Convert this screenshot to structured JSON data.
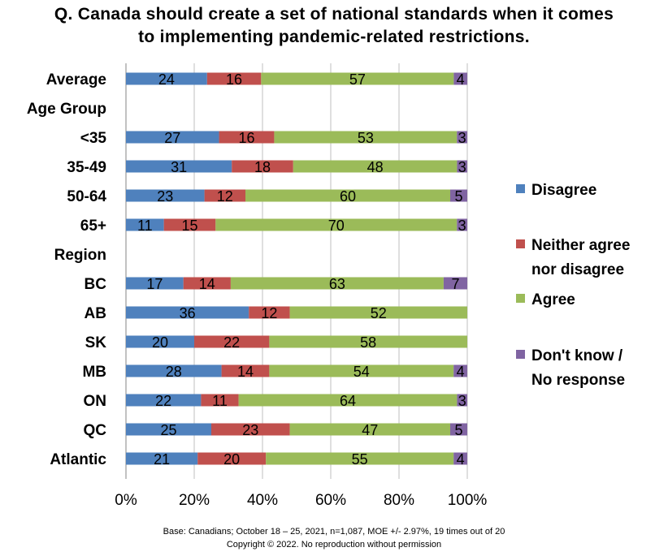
{
  "chart_data": {
    "type": "bar",
    "orientation": "horizontal",
    "stacked": "percent",
    "title": [
      "Q. Canada should create a set of national standards when it comes",
      "to implementing pandemic-related restrictions."
    ],
    "categories": [
      "Average",
      "Age Group",
      "<35",
      "35-49",
      "50-64",
      "65+",
      "Region",
      "BC",
      "AB",
      "SK",
      "MB",
      "ON",
      "QC",
      "Atlantic"
    ],
    "series": [
      {
        "name": "Disagree",
        "color": "#4F81BD",
        "values": [
          24,
          null,
          27,
          31,
          23,
          11,
          null,
          17,
          36,
          20,
          28,
          22,
          25,
          21
        ]
      },
      {
        "name": "Neither agree nor disagree",
        "color": "#C0504D",
        "values": [
          16,
          null,
          16,
          18,
          12,
          15,
          null,
          14,
          12,
          22,
          14,
          11,
          23,
          20
        ]
      },
      {
        "name": "Agree",
        "color": "#9BBB59",
        "values": [
          57,
          null,
          53,
          48,
          60,
          70,
          null,
          63,
          52,
          58,
          54,
          64,
          47,
          55
        ]
      },
      {
        "name": "Don't know / No response",
        "color": "#8064A2",
        "values": [
          4,
          null,
          3,
          3,
          5,
          3,
          null,
          7,
          0,
          0,
          4,
          3,
          5,
          4
        ]
      }
    ],
    "legend_labels": [
      [
        "Disagree"
      ],
      [
        "Neither agree",
        "nor disagree"
      ],
      [
        "Agree"
      ],
      [
        "Don't know /",
        "No response"
      ]
    ],
    "x_ticks": [
      "0%",
      "20%",
      "40%",
      "60%",
      "80%",
      "100%"
    ],
    "xlim": [
      0,
      100
    ],
    "grid": true,
    "legend": "right"
  },
  "footer": {
    "base": "Base: Canadians; October 18 – 25, 2021, n=1,087, MOE +/- 2.97%, 19 times out of 20",
    "copyright": "Copyright © 2022. No reproduction without permission"
  }
}
